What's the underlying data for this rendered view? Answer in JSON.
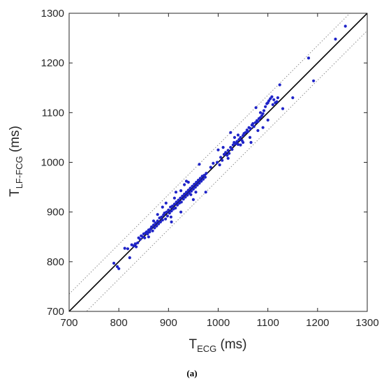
{
  "caption": "(a)",
  "chart_data": {
    "type": "scatter",
    "xlabel": {
      "main": "T",
      "sub": "ECG",
      "suffix": " (ms)"
    },
    "ylabel": {
      "main": "T",
      "sub": "LF-FCG",
      "suffix": " (ms)"
    },
    "xlim": [
      700,
      1300
    ],
    "ylim": [
      700,
      1300
    ],
    "xticks": [
      700,
      800,
      900,
      1000,
      1100,
      1200,
      1300
    ],
    "yticks": [
      700,
      800,
      900,
      1000,
      1100,
      1200,
      1300
    ],
    "grid": false,
    "reference_lines": [
      {
        "kind": "identity",
        "offset": 0,
        "style": "solid"
      },
      {
        "kind": "limit",
        "offset": 35,
        "style": "dotted"
      },
      {
        "kind": "limit",
        "offset": -35,
        "style": "dotted"
      }
    ],
    "colors": {
      "points": "#1f24c8",
      "identity": "#000000",
      "limits": "#8c8c8c",
      "axes": "#262626"
    },
    "points": [
      [
        790,
        797
      ],
      [
        797,
        790
      ],
      [
        800,
        786
      ],
      [
        812,
        827
      ],
      [
        818,
        826
      ],
      [
        822,
        808
      ],
      [
        826,
        834
      ],
      [
        830,
        832
      ],
      [
        833,
        836
      ],
      [
        835,
        830
      ],
      [
        838,
        838
      ],
      [
        843,
        845
      ],
      [
        845,
        852
      ],
      [
        848,
        850
      ],
      [
        850,
        856
      ],
      [
        852,
        848
      ],
      [
        854,
        858
      ],
      [
        856,
        860
      ],
      [
        858,
        856
      ],
      [
        860,
        864
      ],
      [
        862,
        860
      ],
      [
        864,
        866
      ],
      [
        866,
        870
      ],
      [
        868,
        862
      ],
      [
        870,
        874
      ],
      [
        872,
        868
      ],
      [
        874,
        878
      ],
      [
        876,
        872
      ],
      [
        878,
        882
      ],
      [
        880,
        876
      ],
      [
        882,
        888
      ],
      [
        884,
        880
      ],
      [
        886,
        890
      ],
      [
        888,
        884
      ],
      [
        890,
        894
      ],
      [
        892,
        898
      ],
      [
        894,
        886
      ],
      [
        896,
        900
      ],
      [
        898,
        892
      ],
      [
        900,
        904
      ],
      [
        902,
        898
      ],
      [
        904,
        910
      ],
      [
        906,
        902
      ],
      [
        908,
        912
      ],
      [
        910,
        906
      ],
      [
        912,
        916
      ],
      [
        914,
        908
      ],
      [
        916,
        920
      ],
      [
        918,
        914
      ],
      [
        920,
        924
      ],
      [
        922,
        918
      ],
      [
        924,
        928
      ],
      [
        926,
        920
      ],
      [
        928,
        932
      ],
      [
        930,
        926
      ],
      [
        932,
        936
      ],
      [
        934,
        930
      ],
      [
        936,
        940
      ],
      [
        938,
        934
      ],
      [
        940,
        944
      ],
      [
        942,
        938
      ],
      [
        944,
        948
      ],
      [
        946,
        942
      ],
      [
        948,
        952
      ],
      [
        950,
        946
      ],
      [
        952,
        956
      ],
      [
        954,
        950
      ],
      [
        956,
        960
      ],
      [
        958,
        954
      ],
      [
        960,
        964
      ],
      [
        962,
        958
      ],
      [
        964,
        968
      ],
      [
        966,
        962
      ],
      [
        968,
        972
      ],
      [
        970,
        966
      ],
      [
        972,
        974
      ],
      [
        974,
        970
      ],
      [
        976,
        978
      ],
      [
        962,
        996
      ],
      [
        936,
        962
      ],
      [
        895,
        918
      ],
      [
        915,
        940
      ],
      [
        940,
        960
      ],
      [
        906,
        880
      ],
      [
        975,
        940
      ],
      [
        950,
        925
      ],
      [
        870,
        882
      ],
      [
        925,
        900
      ],
      [
        998,
        1000
      ],
      [
        1005,
        1010
      ],
      [
        1008,
        1004
      ],
      [
        1012,
        1016
      ],
      [
        1015,
        1020
      ],
      [
        1018,
        1014
      ],
      [
        1020,
        1024
      ],
      [
        1022,
        1018
      ],
      [
        1025,
        1030
      ],
      [
        1028,
        1026
      ],
      [
        1030,
        1035
      ],
      [
        1032,
        1040
      ],
      [
        1035,
        1038
      ],
      [
        1038,
        1042
      ],
      [
        1040,
        1036
      ],
      [
        1042,
        1046
      ],
      [
        1045,
        1050
      ],
      [
        1048,
        1044
      ],
      [
        1050,
        1054
      ],
      [
        1052,
        1058
      ],
      [
        1055,
        1060
      ],
      [
        1058,
        1065
      ],
      [
        1060,
        1062
      ],
      [
        1062,
        1070
      ],
      [
        1065,
        1068
      ],
      [
        1068,
        1075
      ],
      [
        1070,
        1078
      ],
      [
        1072,
        1072
      ],
      [
        1075,
        1080
      ],
      [
        1078,
        1084
      ],
      [
        1080,
        1082
      ],
      [
        1082,
        1088
      ],
      [
        1085,
        1090
      ],
      [
        1088,
        1094
      ],
      [
        1090,
        1098
      ],
      [
        1092,
        1104
      ],
      [
        1095,
        1112
      ],
      [
        1098,
        1118
      ],
      [
        1100,
        1120
      ],
      [
        1102,
        1124
      ],
      [
        1105,
        1128
      ],
      [
        1108,
        1132
      ],
      [
        1110,
        1116
      ],
      [
        1112,
        1126
      ],
      [
        1115,
        1120
      ],
      [
        1118,
        1122
      ],
      [
        1120,
        1130
      ],
      [
        1124,
        1156
      ],
      [
        1130,
        1108
      ],
      [
        1040,
        1055
      ],
      [
        1066,
        1040
      ],
      [
        1025,
        1060
      ],
      [
        1090,
        1070
      ],
      [
        1085,
        1100
      ],
      [
        1076,
        1110
      ],
      [
        1150,
        1130
      ],
      [
        1182,
        1210
      ],
      [
        1192,
        1164
      ],
      [
        1236,
        1248
      ],
      [
        1256,
        1274
      ],
      [
        1000,
        1025
      ],
      [
        985,
        990
      ],
      [
        990,
        998
      ],
      [
        1010,
        1030
      ],
      [
        1020,
        1008
      ],
      [
        1050,
        1040
      ],
      [
        1064,
        1050
      ],
      [
        1100,
        1085
      ],
      [
        1080,
        1064
      ],
      [
        840,
        848
      ],
      [
        860,
        850
      ],
      [
        878,
        895
      ],
      [
        925,
        943
      ],
      [
        945,
        935
      ],
      [
        955,
        940
      ],
      [
        932,
        955
      ],
      [
        912,
        928
      ],
      [
        888,
        910
      ],
      [
        905,
        890
      ],
      [
        1003,
        995
      ],
      [
        1033,
        1050
      ],
      [
        1045,
        1035
      ]
    ]
  }
}
